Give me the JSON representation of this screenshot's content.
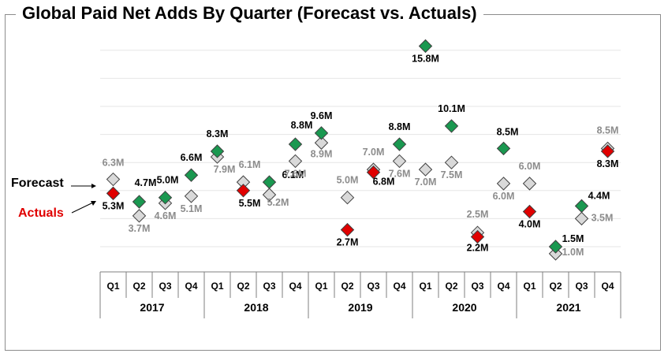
{
  "title": "Global Paid Net Adds By Quarter (Forecast vs. Actuals)",
  "legend": {
    "forecast": "Forecast",
    "actuals": "Actuals"
  },
  "chart_data": {
    "type": "scatter",
    "title": "Global Paid Net Adds By Quarter (Forecast vs. Actuals)",
    "years": [
      "2017",
      "2018",
      "2019",
      "2020",
      "2021"
    ],
    "quarters": [
      "Q1",
      "Q2",
      "Q3",
      "Q4"
    ],
    "categories": [
      "2017 Q1",
      "2017 Q2",
      "2017 Q3",
      "2017 Q4",
      "2018 Q1",
      "2018 Q2",
      "2018 Q3",
      "2018 Q4",
      "2019 Q1",
      "2019 Q2",
      "2019 Q3",
      "2019 Q4",
      "2020 Q1",
      "2020 Q2",
      "2020 Q3",
      "2020 Q4",
      "2021 Q1",
      "2021 Q2",
      "2021 Q3",
      "2021 Q4"
    ],
    "series": [
      {
        "name": "Forecast",
        "values": [
          6.3,
          3.7,
          4.6,
          5.1,
          7.9,
          6.1,
          5.2,
          7.6,
          8.9,
          5.0,
          7.0,
          7.6,
          7.0,
          7.5,
          2.5,
          6.0,
          6.0,
          1.0,
          3.5,
          8.5
        ],
        "labels": [
          "6.3M",
          "3.7M",
          "4.6M",
          "5.1M",
          "7.9M",
          "6.1M",
          "5.2M",
          "7.6M",
          "8.9M",
          "5.0M",
          "7.0M",
          "7.6M",
          "7.0M",
          "7.5M",
          "2.5M",
          "6.0M",
          "6.0M",
          "1.0M",
          "3.5M",
          "8.5M"
        ]
      },
      {
        "name": "Actuals",
        "values": [
          5.3,
          4.7,
          5.0,
          6.6,
          8.3,
          5.5,
          6.1,
          8.8,
          9.6,
          2.7,
          6.8,
          8.8,
          15.8,
          10.1,
          2.2,
          8.5,
          4.0,
          1.5,
          4.4,
          8.3
        ],
        "labels": [
          "5.3M",
          "4.7M",
          "5.0M",
          "6.6M",
          "8.3M",
          "5.5M",
          "6.1M",
          "8.8M",
          "9.6M",
          "2.7M",
          "6.8M",
          "8.8M",
          "15.8M",
          "10.1M",
          "2.2M",
          "8.5M",
          "4.0M",
          "1.5M",
          "4.4M",
          "8.3M"
        ]
      }
    ],
    "ylim": [
      0,
      16
    ],
    "grid": true,
    "colors": {
      "beat": "#1a9850",
      "miss": "#e00000",
      "forecast": "#d9d9d9",
      "forecast_label": "#8c8c8c",
      "actual_label": "#000000",
      "grid": "#e6e6e6"
    }
  }
}
